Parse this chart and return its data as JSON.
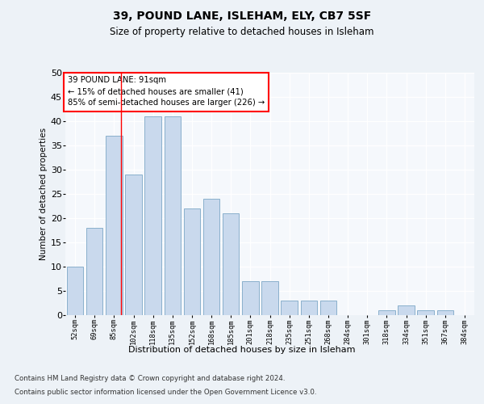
{
  "title1": "39, POUND LANE, ISLEHAM, ELY, CB7 5SF",
  "title2": "Size of property relative to detached houses in Isleham",
  "xlabel": "Distribution of detached houses by size in Isleham",
  "ylabel": "Number of detached properties",
  "categories": [
    "52sqm",
    "69sqm",
    "85sqm",
    "102sqm",
    "118sqm",
    "135sqm",
    "152sqm",
    "168sqm",
    "185sqm",
    "201sqm",
    "218sqm",
    "235sqm",
    "251sqm",
    "268sqm",
    "284sqm",
    "301sqm",
    "318sqm",
    "334sqm",
    "351sqm",
    "367sqm",
    "384sqm"
  ],
  "values": [
    10,
    18,
    37,
    29,
    41,
    41,
    22,
    24,
    21,
    7,
    7,
    3,
    3,
    3,
    0,
    0,
    1,
    2,
    1,
    1,
    0
  ],
  "bar_color": "#c9d9ed",
  "bar_edge_color": "#8ab0cc",
  "ylim": [
    0,
    50
  ],
  "yticks": [
    0,
    5,
    10,
    15,
    20,
    25,
    30,
    35,
    40,
    45,
    50
  ],
  "vline_x": 2.353,
  "annotation_text": "39 POUND LANE: 91sqm\n← 15% of detached houses are smaller (41)\n85% of semi-detached houses are larger (226) →",
  "footer1": "Contains HM Land Registry data © Crown copyright and database right 2024.",
  "footer2": "Contains public sector information licensed under the Open Government Licence v3.0.",
  "bg_color": "#edf2f7",
  "plot_bg_color": "#f5f8fc"
}
